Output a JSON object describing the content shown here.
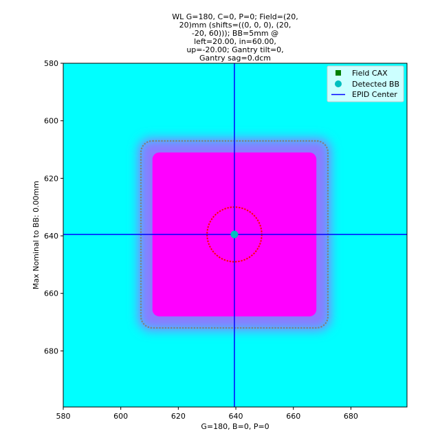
{
  "chart_data": {
    "type": "heatmap",
    "title_lines": [
      "WL G=180, C=0, P=0; Field=(20,",
      "20)mm (shifts=((0, 0, 0), (20,",
      "-20, 60))); BB=5mm @",
      "left=20.00, in=60.00,",
      "up=-20.00; Gantry tilt=0,",
      "Gantry sag=0.dcm"
    ],
    "xlabel": "G=180, B=0, P=0",
    "ylabel": "Max Nominal to BB: 0.00mm",
    "xlim": [
      580,
      699.5
    ],
    "ylim": [
      699.5,
      580
    ],
    "y_inverted": true,
    "xticks": [
      580,
      600,
      620,
      640,
      660,
      680
    ],
    "yticks": [
      580,
      600,
      620,
      640,
      660,
      680
    ],
    "grid": false,
    "legend_position": "top-right",
    "legend": [
      {
        "label": "Field CAX",
        "marker": "square",
        "color": "#008000"
      },
      {
        "label": "Detected BB",
        "marker": "circle",
        "color": "#00bfbf"
      },
      {
        "label": "EPID Center",
        "marker": "line",
        "color": "#0000ff"
      }
    ],
    "colors": {
      "background_field": "#00ffff",
      "radiation_field": "#ff00ff",
      "field_edge_contour": "#808080",
      "bb_edge_contour": "#ff0000",
      "epid_center": "#0000ff",
      "field_cax": "#008000",
      "detected_bb": "#00bfbf"
    },
    "field": {
      "x_min": 607,
      "x_max": 672,
      "y_min": 607,
      "y_max": 672,
      "corner_radius": 4,
      "penumbra": 4
    },
    "bb": {
      "center_x": 639.5,
      "center_y": 639.5,
      "radius": 9.5
    },
    "field_cax": {
      "x": 639.5,
      "y": 639.5
    },
    "detected_bb": {
      "x": 639.5,
      "y": 639.5
    },
    "epid_center": {
      "x": 639.5,
      "y": 639.5
    }
  }
}
